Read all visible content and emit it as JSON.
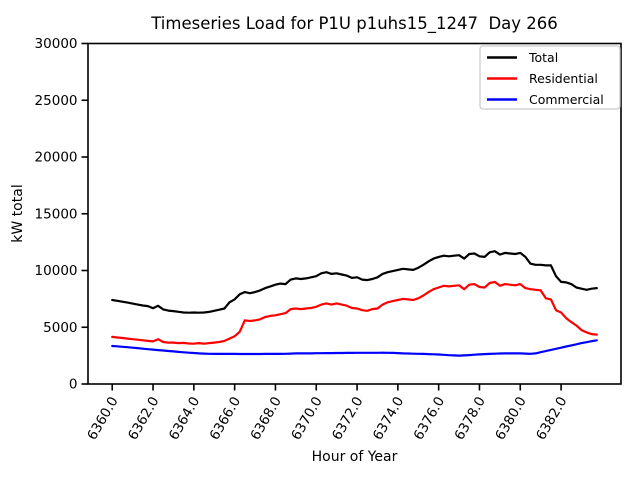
{
  "title": "Timeseries Load for P1U p1uhs15_1247  Day 266",
  "axes": {
    "xlabel": "Hour of Year",
    "ylabel": "kW total"
  },
  "legend": {
    "items": [
      {
        "label": "Total",
        "color": "#000000"
      },
      {
        "label": "Residential",
        "color": "#ff0000"
      },
      {
        "label": "Commercial",
        "color": "#0000ff"
      }
    ]
  },
  "chart_data": {
    "type": "line",
    "title": "Timeseries Load for P1U p1uhs15_1247  Day 266",
    "xlabel": "Hour of Year",
    "ylabel": "kW total",
    "xlim": [
      6358.8125,
      6384.9375
    ],
    "ylim": [
      0,
      30000
    ],
    "xticks": [
      6360,
      6362,
      6364,
      6366,
      6368,
      6370,
      6372,
      6374,
      6376,
      6378,
      6380,
      6382
    ],
    "yticks": [
      0,
      5000,
      10000,
      15000,
      20000,
      25000,
      30000
    ],
    "grid": false,
    "legend_position": "upper right",
    "x": [
      6360,
      6360.25,
      6360.5,
      6360.75,
      6361,
      6361.25,
      6361.5,
      6361.75,
      6362,
      6362.25,
      6362.5,
      6362.75,
      6363,
      6363.25,
      6363.5,
      6363.75,
      6364,
      6364.25,
      6364.5,
      6364.75,
      6365,
      6365.25,
      6365.5,
      6365.75,
      6366,
      6366.25,
      6366.5,
      6366.75,
      6367,
      6367.25,
      6367.5,
      6367.75,
      6368,
      6368.25,
      6368.5,
      6368.75,
      6369,
      6369.25,
      6369.5,
      6369.75,
      6370,
      6370.25,
      6370.5,
      6370.75,
      6371,
      6371.25,
      6371.5,
      6371.75,
      6372,
      6372.25,
      6372.5,
      6372.75,
      6373,
      6373.25,
      6373.5,
      6373.75,
      6374,
      6374.25,
      6374.5,
      6374.75,
      6375,
      6375.25,
      6375.5,
      6375.75,
      6376,
      6376.25,
      6376.5,
      6376.75,
      6377,
      6377.25,
      6377.5,
      6377.75,
      6378,
      6378.25,
      6378.5,
      6378.75,
      6379,
      6379.25,
      6379.5,
      6379.75,
      6380,
      6380.25,
      6380.5,
      6380.75,
      6381,
      6381.25,
      6381.5,
      6381.75,
      6382,
      6382.25,
      6382.5,
      6382.75,
      6383,
      6383.25,
      6383.5,
      6383.75
    ],
    "series": [
      {
        "name": "Total",
        "color": "#000000",
        "values": [
          7400,
          7330,
          7250,
          7170,
          7080,
          7000,
          6920,
          6860,
          6680,
          6890,
          6570,
          6470,
          6420,
          6360,
          6300,
          6280,
          6300,
          6280,
          6300,
          6350,
          6450,
          6550,
          6650,
          7200,
          7450,
          7900,
          8100,
          8000,
          8100,
          8250,
          8450,
          8600,
          8750,
          8850,
          8800,
          9200,
          9300,
          9250,
          9300,
          9400,
          9500,
          9750,
          9850,
          9700,
          9750,
          9650,
          9550,
          9350,
          9400,
          9200,
          9150,
          9250,
          9400,
          9700,
          9850,
          9950,
          10050,
          10150,
          10100,
          10050,
          10250,
          10500,
          10800,
          11050,
          11200,
          11300,
          11250,
          11300,
          11350,
          11050,
          11450,
          11500,
          11250,
          11200,
          11600,
          11700,
          11400,
          11550,
          11500,
          11450,
          11550,
          11200,
          10600,
          10500,
          10500,
          10450,
          10450,
          9500,
          9000,
          8950,
          8800,
          8500,
          8400,
          8300,
          8400,
          8450
        ]
      },
      {
        "name": "Residential",
        "color": "#ff0000",
        "values": [
          4150,
          4100,
          4050,
          4000,
          3950,
          3900,
          3850,
          3800,
          3750,
          3950,
          3700,
          3650,
          3650,
          3600,
          3620,
          3570,
          3550,
          3600,
          3550,
          3600,
          3650,
          3700,
          3800,
          4000,
          4200,
          4600,
          5600,
          5550,
          5600,
          5700,
          5900,
          6000,
          6050,
          6150,
          6250,
          6600,
          6650,
          6600,
          6650,
          6700,
          6800,
          7000,
          7100,
          7000,
          7100,
          7000,
          6900,
          6700,
          6650,
          6500,
          6450,
          6600,
          6650,
          7000,
          7200,
          7300,
          7400,
          7500,
          7450,
          7400,
          7550,
          7800,
          8100,
          8350,
          8500,
          8650,
          8600,
          8650,
          8700,
          8350,
          8750,
          8800,
          8550,
          8500,
          8900,
          9000,
          8650,
          8800,
          8750,
          8700,
          8800,
          8450,
          8350,
          8300,
          8250,
          7550,
          7450,
          6500,
          6300,
          5800,
          5450,
          5150,
          4750,
          4550,
          4400,
          4350
        ]
      },
      {
        "name": "Commercial",
        "color": "#0000ff",
        "values": [
          3350,
          3320,
          3280,
          3240,
          3200,
          3160,
          3110,
          3070,
          3030,
          2990,
          2950,
          2910,
          2870,
          2830,
          2790,
          2760,
          2730,
          2700,
          2680,
          2660,
          2650,
          2650,
          2650,
          2650,
          2650,
          2640,
          2640,
          2640,
          2640,
          2640,
          2650,
          2650,
          2660,
          2650,
          2660,
          2680,
          2700,
          2700,
          2700,
          2700,
          2710,
          2710,
          2720,
          2720,
          2730,
          2730,
          2740,
          2740,
          2750,
          2750,
          2750,
          2750,
          2750,
          2760,
          2750,
          2740,
          2720,
          2700,
          2690,
          2670,
          2660,
          2650,
          2630,
          2620,
          2600,
          2570,
          2540,
          2520,
          2500,
          2520,
          2550,
          2580,
          2610,
          2630,
          2650,
          2670,
          2690,
          2700,
          2700,
          2700,
          2700,
          2680,
          2660,
          2700,
          2800,
          2900,
          3000,
          3100,
          3200,
          3300,
          3400,
          3500,
          3600,
          3680,
          3770,
          3850
        ]
      }
    ]
  }
}
